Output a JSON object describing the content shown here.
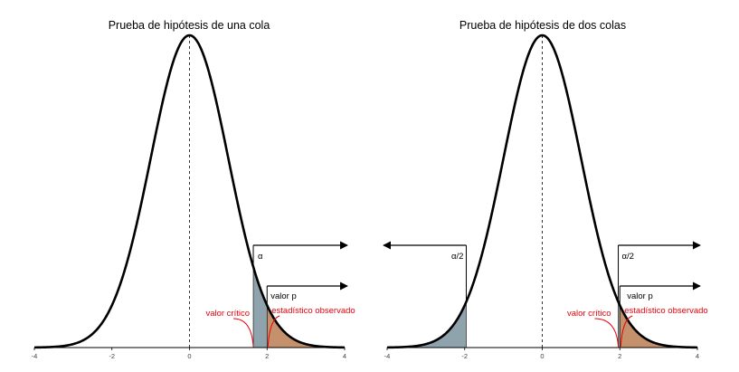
{
  "chart_data": [
    {
      "type": "area",
      "title": "Prueba de hipótesis de una cola",
      "xlabel": "",
      "ylabel": "",
      "xlim": [
        -4,
        4
      ],
      "xticks": [
        "-4",
        "-2",
        "0",
        "2",
        "4"
      ],
      "distribution": "standard normal",
      "grid": false,
      "shaded_regions": [
        {
          "label": "α",
          "from": 1.645,
          "to": 4,
          "color": "#8fa3ad"
        },
        {
          "label": "valor p",
          "from": 2.0,
          "to": 4,
          "color": "#c4916c"
        }
      ],
      "annotations": [
        "valor crítico",
        "estadístico observado"
      ],
      "critical_values": [
        1.645
      ],
      "observed_statistic": 2.0
    },
    {
      "type": "area",
      "title": "Prueba de hipótesis de dos colas",
      "xlabel": "",
      "ylabel": "",
      "xlim": [
        -4,
        4
      ],
      "xticks": [
        "-4",
        "-2",
        "0",
        "2",
        "4"
      ],
      "distribution": "standard normal",
      "grid": false,
      "shaded_regions": [
        {
          "label": "α/2",
          "from": -4,
          "to": -1.96,
          "color": "#8fa3ad"
        },
        {
          "label": "α/2",
          "from": 1.96,
          "to": 4,
          "color": "#8fa3ad"
        },
        {
          "label": "valor p",
          "from": 2.0,
          "to": 4,
          "color": "#c4916c"
        }
      ],
      "annotations": [
        "valor crítico",
        "estadístico observado"
      ],
      "critical_values": [
        -1.96,
        1.96
      ],
      "observed_statistic": 2.0
    }
  ]
}
